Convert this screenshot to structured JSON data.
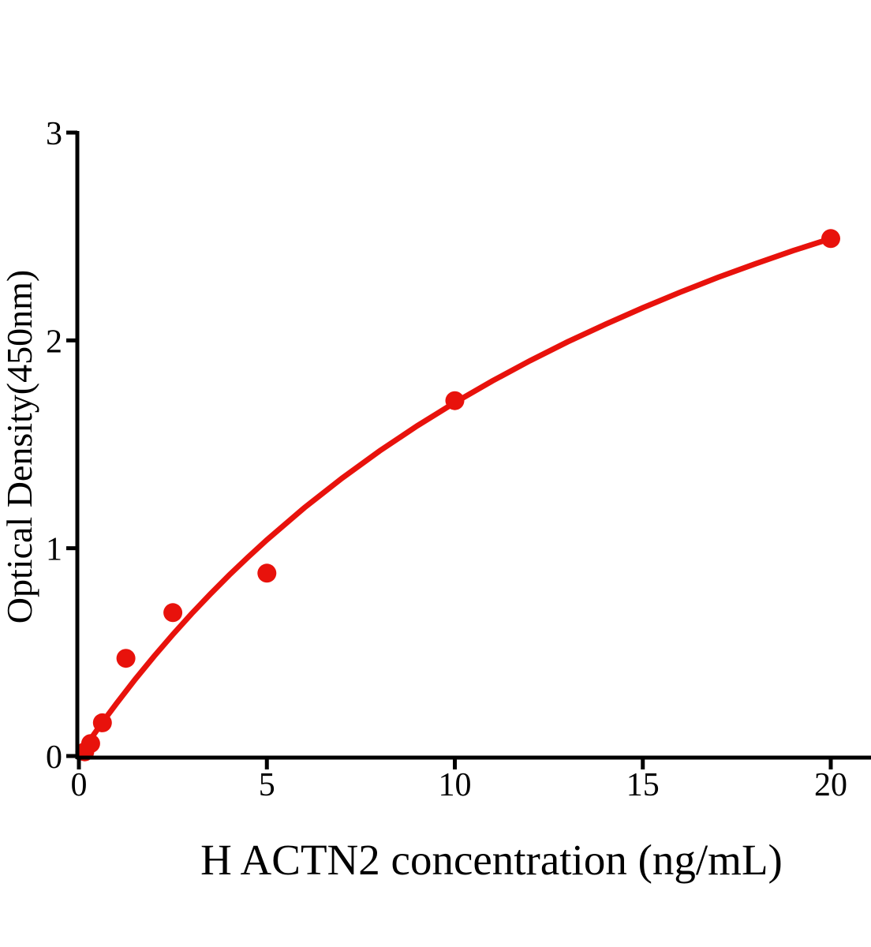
{
  "chart_data": {
    "type": "scatter",
    "title": "",
    "xlabel": "H ACTN2 concentration (ng/mL)",
    "ylabel": "Optical Density(450nm)",
    "xlim": [
      0,
      21.1
    ],
    "ylim": [
      0,
      3
    ],
    "x_ticks": [
      0,
      5,
      10,
      15,
      20
    ],
    "y_ticks": [
      0,
      1,
      2,
      3
    ],
    "grid": false,
    "legend": false,
    "marker": "circle",
    "marker_color": "#e8120c",
    "curve_color": "#e8120c",
    "axis_color": "#000000",
    "x": [
      0.156,
      0.313,
      0.625,
      1.25,
      2.5,
      5,
      10,
      20
    ],
    "y": [
      0.02,
      0.06,
      0.16,
      0.47,
      0.69,
      0.88,
      1.71,
      2.49
    ],
    "fit_curve": [
      [
        0,
        0
      ],
      [
        0.25,
        0.066
      ],
      [
        0.5,
        0.13
      ],
      [
        0.75,
        0.192
      ],
      [
        1,
        0.253
      ],
      [
        1.5,
        0.37
      ],
      [
        2,
        0.48
      ],
      [
        2.5,
        0.585
      ],
      [
        3,
        0.685
      ],
      [
        3.5,
        0.78
      ],
      [
        4,
        0.871
      ],
      [
        4.5,
        0.957
      ],
      [
        5,
        1.04
      ],
      [
        6,
        1.195
      ],
      [
        7,
        1.337
      ],
      [
        8,
        1.468
      ],
      [
        9,
        1.589
      ],
      [
        10,
        1.701
      ],
      [
        11,
        1.805
      ],
      [
        12,
        1.902
      ],
      [
        13,
        1.993
      ],
      [
        14,
        2.077
      ],
      [
        15,
        2.157
      ],
      [
        16,
        2.232
      ],
      [
        17,
        2.303
      ],
      [
        18,
        2.369
      ],
      [
        19,
        2.432
      ],
      [
        20,
        2.49
      ]
    ]
  }
}
